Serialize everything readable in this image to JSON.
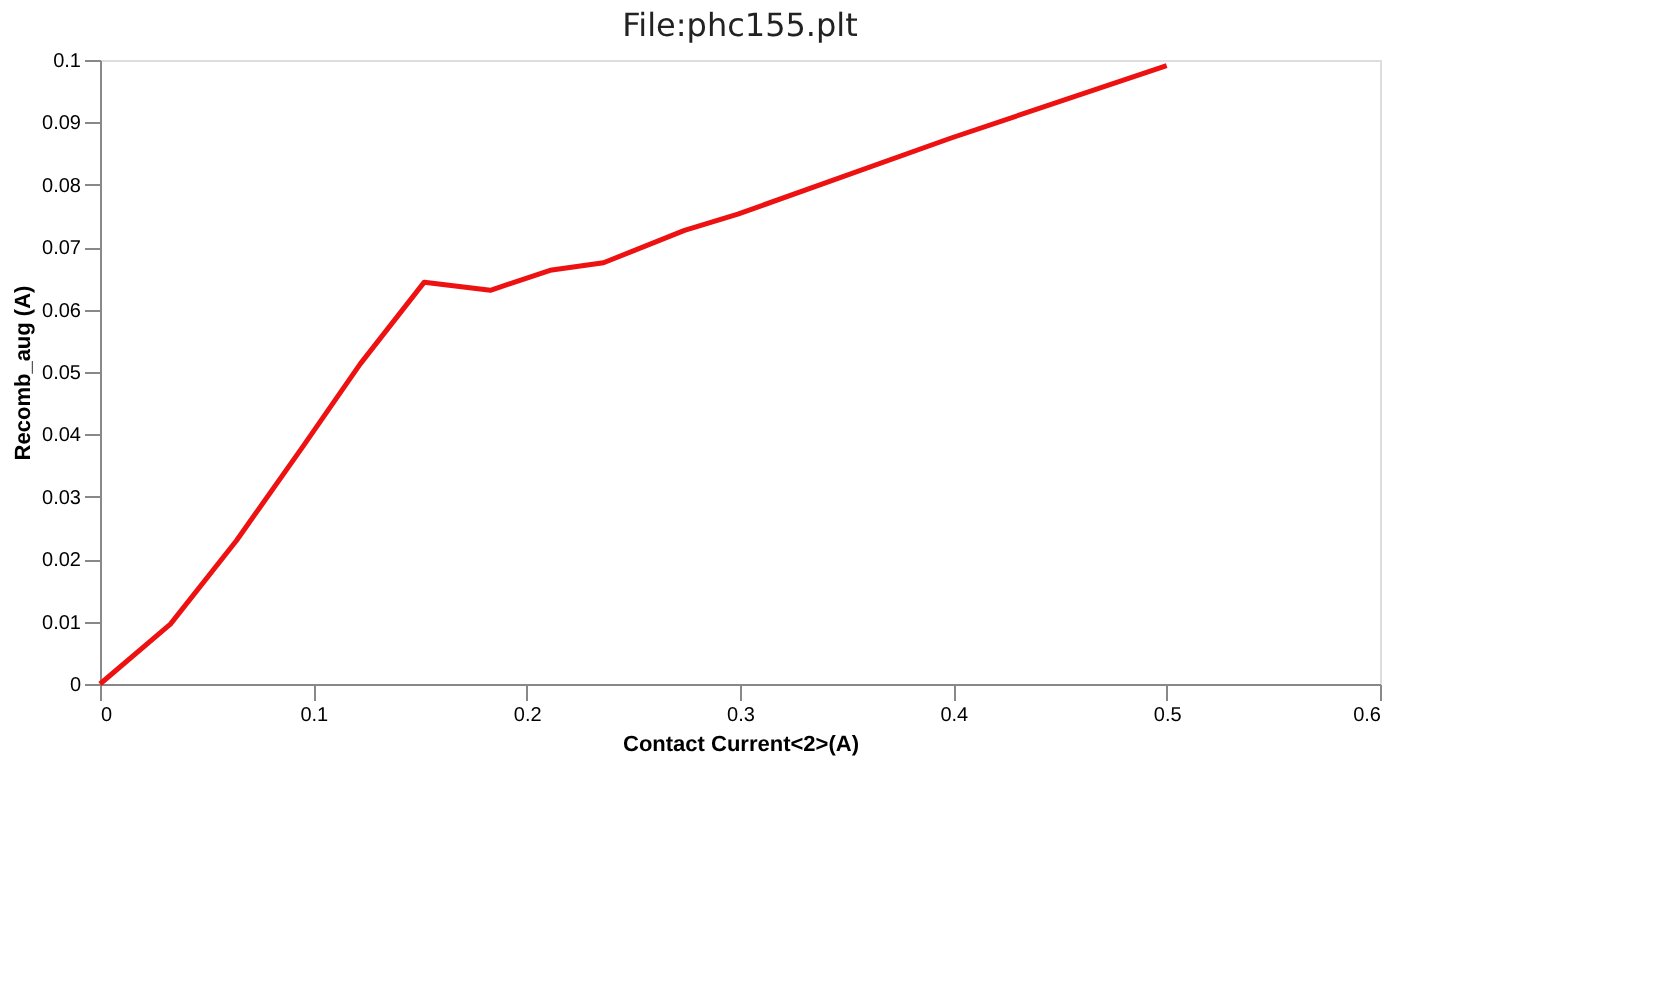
{
  "chart_data": {
    "type": "line",
    "title": "File:phc155.plt",
    "xlabel": "Contact Current<2>(A)",
    "ylabel": "Recomb_aug (A)",
    "x": [
      0,
      0.033,
      0.064,
      0.095,
      0.122,
      0.152,
      0.183,
      0.211,
      0.236,
      0.274,
      0.299,
      0.399,
      0.5
    ],
    "series": [
      {
        "color": "#ee1111",
        "values": [
          0,
          0.0096,
          0.023,
          0.038,
          0.0513,
          0.0644,
          0.0631,
          0.0663,
          0.0675,
          0.0727,
          0.0753,
          0.0875,
          0.0991
        ]
      }
    ],
    "xlim": [
      0,
      0.6
    ],
    "xticks": [
      0,
      0.1,
      0.2,
      0.3,
      0.4,
      0.5,
      0.6
    ],
    "ylim": [
      0,
      0.1
    ],
    "yticks": [
      0,
      0.01,
      0.02,
      0.03,
      0.04,
      0.05,
      0.06,
      0.07,
      0.08,
      0.09,
      0.1
    ],
    "grid": false,
    "legend": false,
    "marker": "none",
    "line_style": "solid"
  }
}
